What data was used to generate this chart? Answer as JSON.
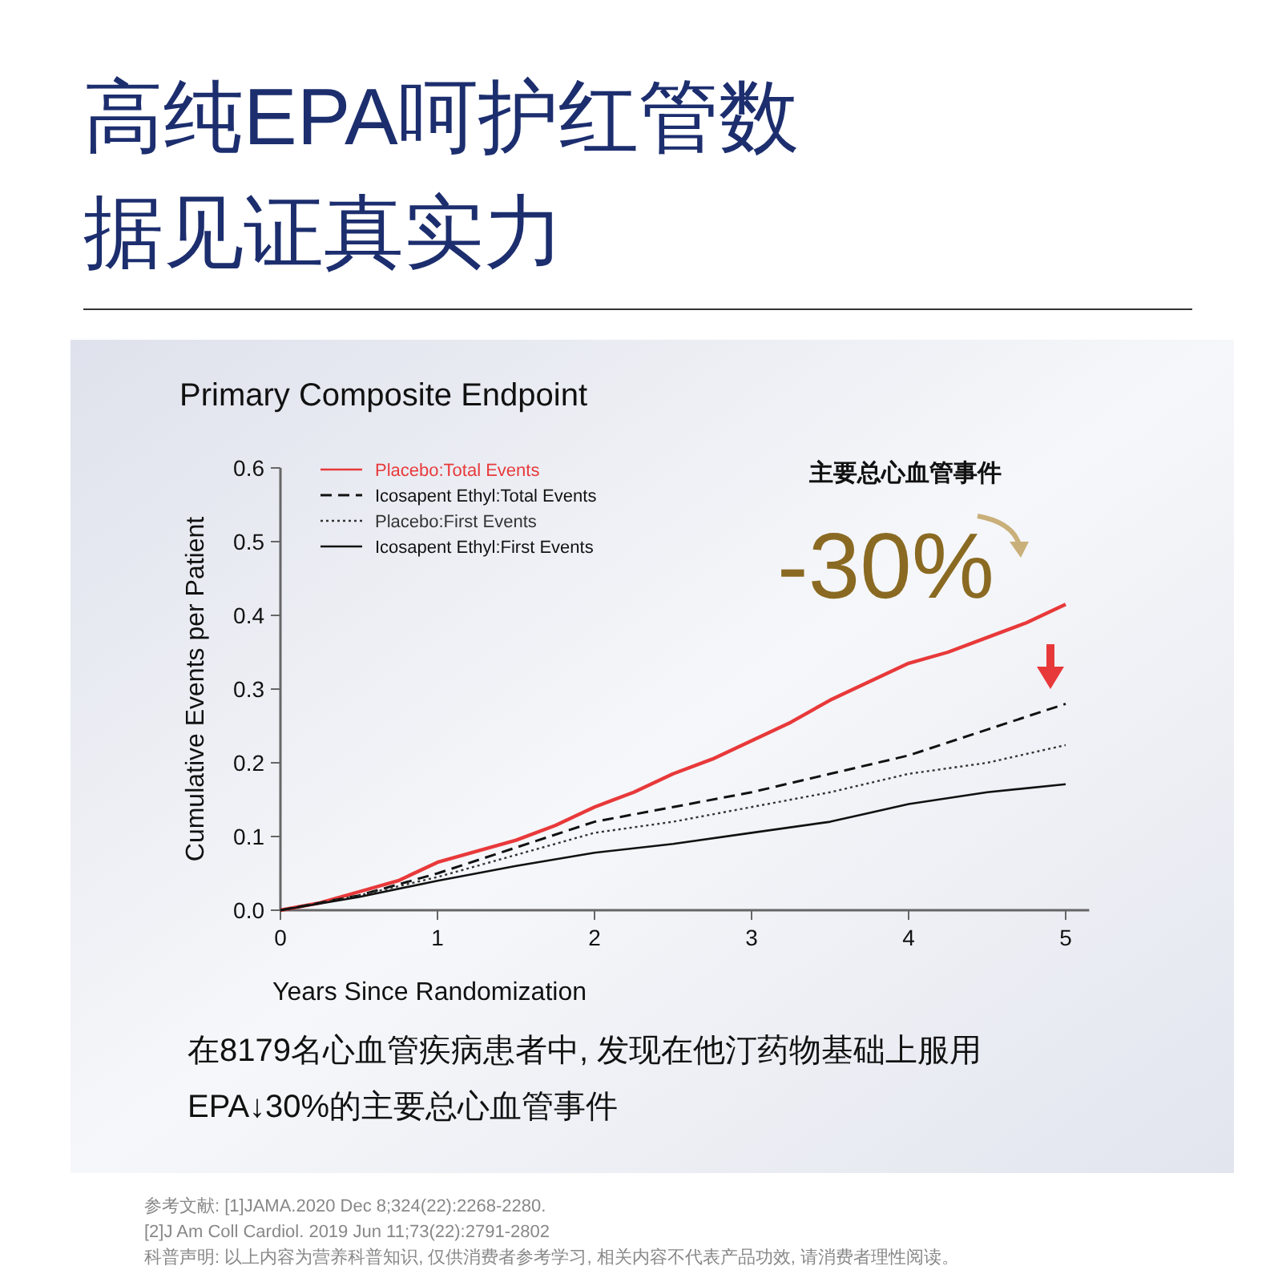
{
  "chart_data": {
    "type": "line",
    "title": "高纯EPA呵护红管数据见证真实力",
    "subtitle": "Primary Composite Endpoint",
    "xlabel": "Years Since Randomization",
    "ylabel": "Cumulative Events per Patient",
    "xlim": [
      0,
      5.15
    ],
    "ylim": [
      0,
      0.6
    ],
    "xticks": [
      0,
      1,
      2,
      3,
      4,
      5
    ],
    "yticks": [
      {
        "value": 0,
        "label": "0.0"
      },
      0.1,
      0.2,
      0.3,
      0.4,
      0.5,
      0.6
    ],
    "legend": "top left",
    "grid": false,
    "series": [
      {
        "name": "Placebo:Total Events",
        "color": "#e8393a",
        "line_style": "solid",
        "x": [
          0,
          0.25,
          0.5,
          0.75,
          1,
          1.25,
          1.5,
          1.75,
          2,
          2.25,
          2.5,
          2.75,
          3,
          3.25,
          3.5,
          3.75,
          4,
          4.25,
          4.5,
          4.75,
          5
        ],
        "values": [
          0,
          0.01,
          0.025,
          0.04,
          0.065,
          0.08,
          0.095,
          0.115,
          0.14,
          0.16,
          0.185,
          0.205,
          0.23,
          0.255,
          0.285,
          0.31,
          0.335,
          0.35,
          0.37,
          0.39,
          0.415
        ]
      },
      {
        "name": "Icosapent Ethyl:Total Events",
        "color": "#111111",
        "line_style": "dashed",
        "x": [
          0,
          0.5,
          1,
          1.5,
          2,
          2.5,
          3,
          3.5,
          4,
          4.5,
          5
        ],
        "values": [
          0,
          0.02,
          0.05,
          0.085,
          0.12,
          0.14,
          0.16,
          0.185,
          0.21,
          0.245,
          0.28
        ]
      },
      {
        "name": "Placebo:First Events",
        "color": "#333333",
        "line_style": "dotted",
        "x": [
          0,
          0.5,
          1,
          1.5,
          2,
          2.5,
          3,
          3.5,
          4,
          4.5,
          5
        ],
        "values": [
          0,
          0.02,
          0.045,
          0.075,
          0.105,
          0.12,
          0.14,
          0.16,
          0.185,
          0.2,
          0.224
        ]
      },
      {
        "name": "Icosapent Ethyl:First Events",
        "color": "#111111",
        "line_style": "solid",
        "x": [
          0,
          0.5,
          1,
          1.5,
          2,
          2.5,
          3,
          3.5,
          4,
          4.5,
          5
        ],
        "values": [
          0,
          0.018,
          0.04,
          0.06,
          0.078,
          0.09,
          0.105,
          0.12,
          0.144,
          0.16,
          0.171
        ]
      }
    ],
    "annotations": [
      "主要总心血管事件",
      "-30%",
      "在8179名心血管疾病患者中, 发现在他汀药物基础上服用",
      "EPA↓30%的主要总心血管事件",
      "参考文献: [1]JAMA.2020 Dec 8;324(22):2268-2280.",
      "[2]J Am Coll Cardiol. 2019 Jun 11;73(22):2791-2802",
      "科普声明: 以上内容为营养科普知识, 仅供消费者参考学习, 相关内容不代表产品功效, 请消费者理性阅读。"
    ]
  }
}
